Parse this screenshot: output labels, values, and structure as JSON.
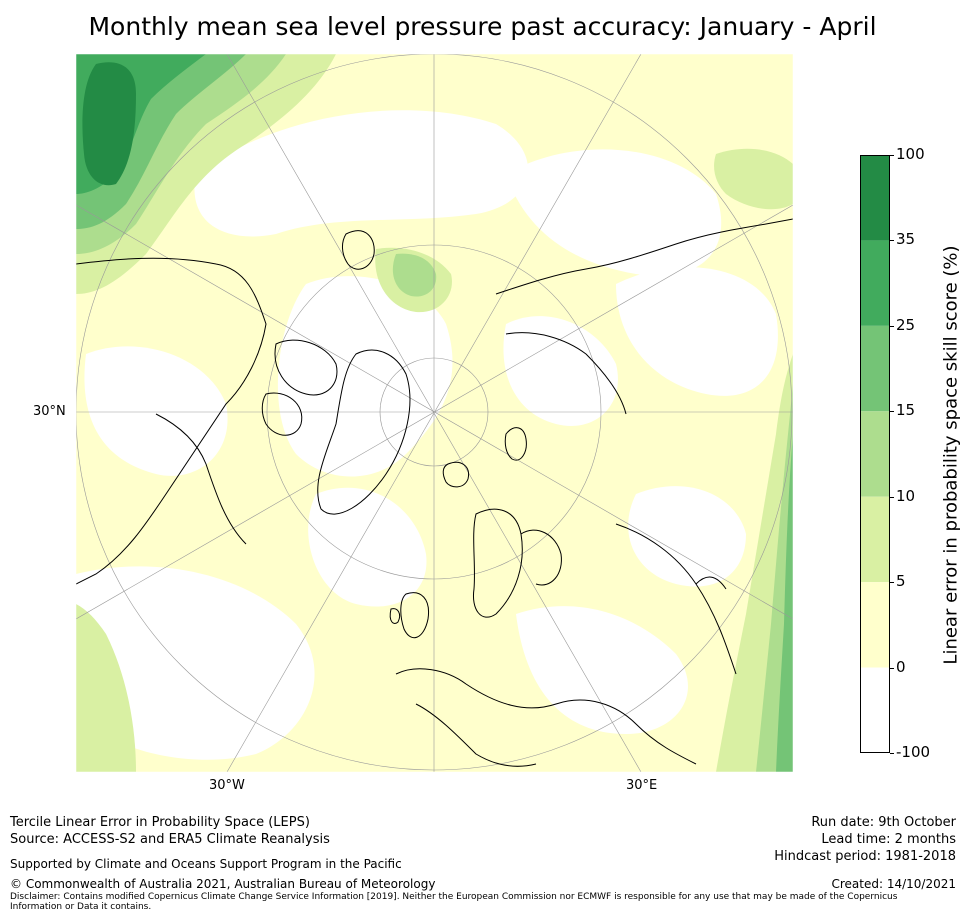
{
  "title": "Monthly mean sea level pressure past accuracy: January - April",
  "map": {
    "lat_label": "30°N",
    "lon_labels": [
      "30°W",
      "30°E"
    ]
  },
  "colorbar": {
    "label": "Linear error in probability space skill score (%)",
    "ticks": [
      "100",
      "35",
      "25",
      "15",
      "10",
      "5",
      "0",
      "-100"
    ],
    "colors": [
      "#238b45",
      "#41ab5d",
      "#74c476",
      "#addd8e",
      "#d9f0a3",
      "#ffffcc",
      "#ffffff"
    ]
  },
  "footer": {
    "line1": "Tercile Linear Error in Probability Space (LEPS)",
    "line2": "Source: ACCESS-S2 and ERA5 Climate Reanalysis",
    "support": "Supported by Climate and Oceans Support Program in the Pacific",
    "copyright": "© Commonwealth of Australia 2021, Australian Bureau of Meteorology",
    "disclaimer": "Disclaimer: Contains modified Copernicus Climate Change Service Information [2019]. Neither the European Commission nor ECMWF is responsible for any use that may be made of the Copernicus Information or Data it contains.",
    "run_date": "Run date: 9th October",
    "lead_time": "Lead time: 2 months",
    "hindcast": "Hindcast period: 1981-2018",
    "created": "Created: 14/10/2021"
  }
}
